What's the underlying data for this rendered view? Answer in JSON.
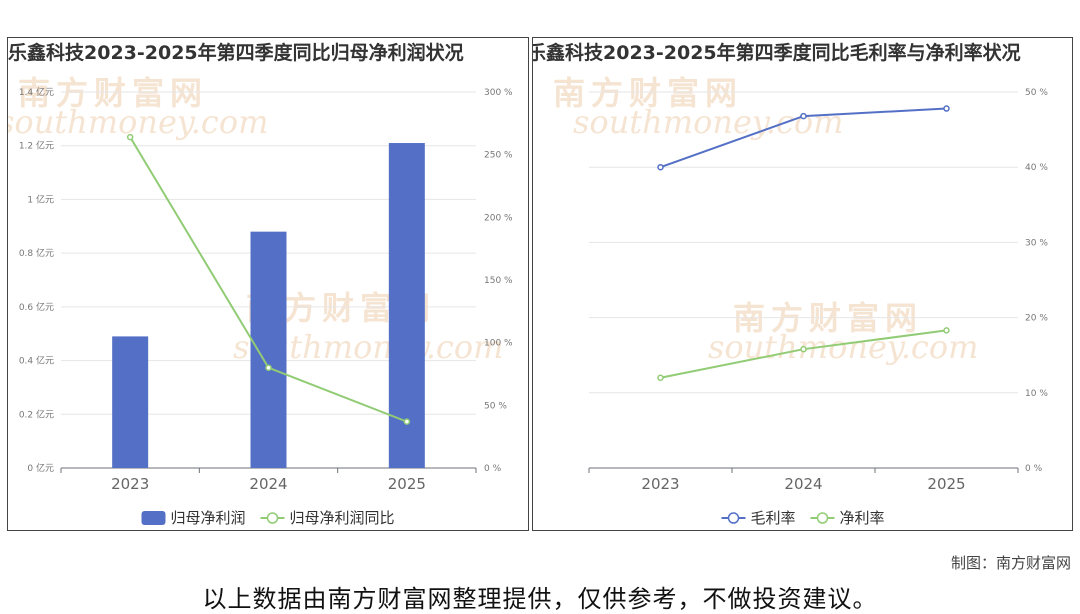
{
  "footer": {
    "credit": "制图：南方财富网",
    "disclaimer": "以上数据由南方财富网整理提供，仅供参考，不做投资建议。"
  },
  "watermark": {
    "brand": "南方财富网",
    "url": "southmoney.com"
  },
  "chart_data": [
    {
      "type": "bar",
      "title": "乐鑫科技2023-2025年第四季度同比归母净利润状况",
      "categories": [
        "2023",
        "2024",
        "2025"
      ],
      "y_left": {
        "ylim": [
          0,
          1.4
        ],
        "ticks": [
          0,
          0.2,
          0.4,
          0.6,
          0.8,
          1,
          1.2,
          1.4
        ],
        "tick_labels": [
          "0 亿元",
          "0.2 亿元",
          "0.4 亿元",
          "0.6 亿元",
          "0.8 亿元",
          "1 亿元",
          "1.2 亿元",
          "1.4 亿元"
        ]
      },
      "y_right": {
        "ylim": [
          0,
          300
        ],
        "ticks": [
          0,
          50,
          100,
          150,
          200,
          250,
          300
        ],
        "tick_labels": [
          "0 %",
          "50 %",
          "100 %",
          "150 %",
          "200 %",
          "250 %",
          "300 %"
        ]
      },
      "series": [
        {
          "name": "归母净利润",
          "type": "bar",
          "axis": "left",
          "color": "#5470c6",
          "values": [
            0.49,
            0.88,
            1.21
          ]
        },
        {
          "name": "归母净利润同比",
          "type": "line",
          "axis": "right",
          "color": "#91cc75",
          "values": [
            264,
            80,
            37
          ]
        }
      ],
      "grid": true,
      "legend": "bottom-center"
    },
    {
      "type": "line",
      "title": "乐鑫科技2023-2025年第四季度同比毛利率与净利率状况",
      "categories": [
        "2023",
        "2024",
        "2025"
      ],
      "y_right": {
        "ylim": [
          0,
          50
        ],
        "ticks": [
          0,
          10,
          20,
          30,
          40,
          50
        ],
        "tick_labels": [
          "0 %",
          "10 %",
          "20 %",
          "30 %",
          "40 %",
          "50 %"
        ]
      },
      "series": [
        {
          "name": "毛利率",
          "type": "line",
          "axis": "right",
          "color": "#5470c6",
          "values": [
            40.0,
            46.8,
            47.8
          ]
        },
        {
          "name": "净利率",
          "type": "line",
          "axis": "right",
          "color": "#91cc75",
          "values": [
            12.0,
            15.8,
            18.3
          ]
        }
      ],
      "grid": true,
      "legend": "bottom-center"
    }
  ]
}
